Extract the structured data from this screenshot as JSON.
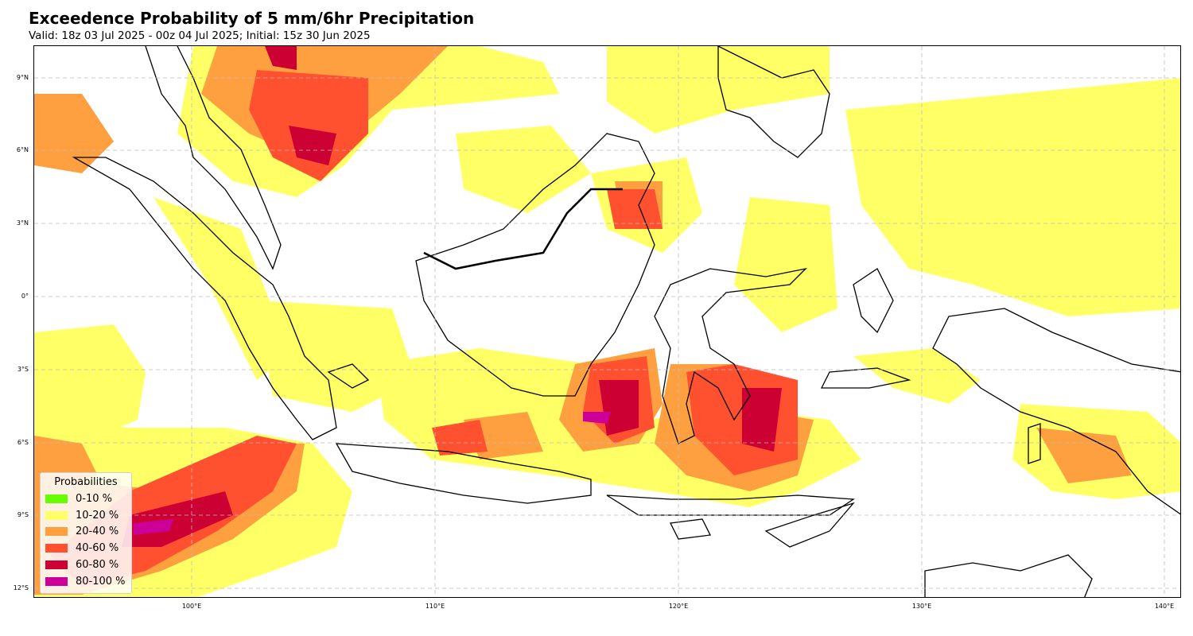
{
  "title": "Exceedence Probability of 5 mm/6hr Precipitation",
  "subtitle": "Valid: 18z 03 Jul 2025 - 00z 04 Jul 2025; Initial: 15z 30 Jun 2025",
  "axes": {
    "lat_ticks": [
      "9°N",
      "6°N",
      "3°N",
      "0°",
      "3°S",
      "6°S",
      "9°S",
      "12°S"
    ],
    "lon_ticks": [
      "100°E",
      "110°E",
      "120°E",
      "130°E",
      "140°E"
    ]
  },
  "legend": {
    "title": "Probabilities",
    "items": [
      {
        "label": "0-10 %",
        "color": "#66ff00"
      },
      {
        "label": "10-20 %",
        "color": "#ffff66"
      },
      {
        "label": "20-40 %",
        "color": "#ffa040"
      },
      {
        "label": "40-60 %",
        "color": "#ff5030"
      },
      {
        "label": "60-80 %",
        "color": "#cc0033"
      },
      {
        "label": "80-100 %",
        "color": "#cc0099"
      }
    ]
  },
  "colors": {
    "c10_20": "#ffff66",
    "c20_40": "#ffa040",
    "c40_60": "#ff5030",
    "c60_80": "#cc0033",
    "c80_100": "#cc0099",
    "coastline": "#000000",
    "grid": "#bbbbbb"
  }
}
